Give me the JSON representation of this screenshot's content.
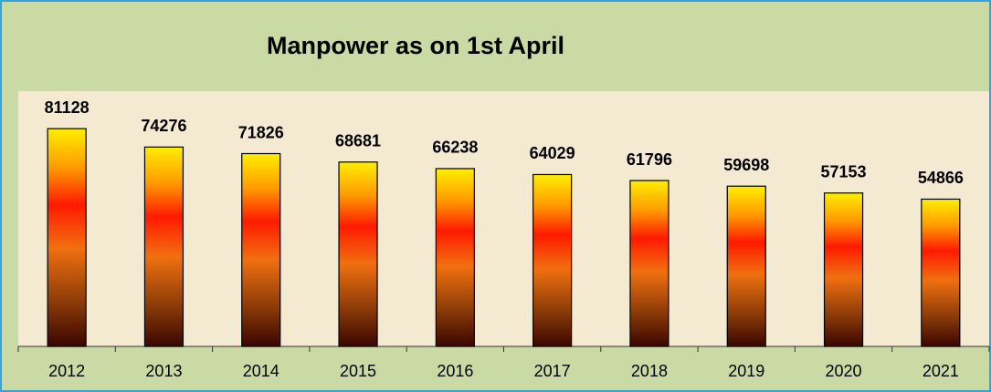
{
  "chart_data": {
    "type": "bar",
    "title": "Manpower as on 1st April",
    "categories": [
      "2012",
      "2013",
      "2014",
      "2015",
      "2016",
      "2017",
      "2018",
      "2019",
      "2020",
      "2021"
    ],
    "values": [
      81128,
      74276,
      71826,
      68681,
      66238,
      64029,
      61796,
      59698,
      57153,
      54866
    ],
    "ylim": [
      0,
      90000
    ]
  }
}
